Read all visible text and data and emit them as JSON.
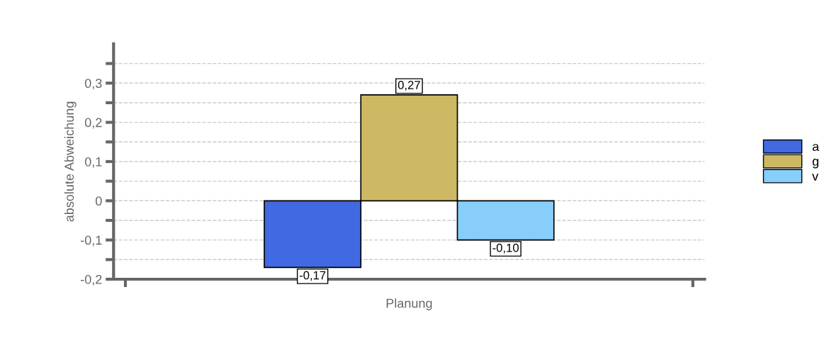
{
  "chart_data": {
    "type": "bar",
    "ylabel": "absolute Abweichung",
    "xlabel": "Planung",
    "categories": [
      null
    ],
    "series": [
      {
        "name": "a",
        "color": "#4169e1",
        "values": [
          -0.17
        ],
        "value_labels": [
          "-0,17"
        ]
      },
      {
        "name": "g",
        "color": "#cdb964",
        "values": [
          0.27
        ],
        "value_labels": [
          "0,27"
        ]
      },
      {
        "name": "v",
        "color": "#87cefa",
        "values": [
          -0.1
        ],
        "value_labels": [
          "-0,10"
        ]
      }
    ],
    "ylim": [
      -0.2,
      0.4
    ],
    "yticks": [
      {
        "value": -0.2,
        "label": "-0,2"
      },
      {
        "value": -0.15,
        "label": null
      },
      {
        "value": -0.1,
        "label": "-0,1"
      },
      {
        "value": -0.05,
        "label": null
      },
      0,
      {
        "value": 0.05,
        "label": null
      },
      {
        "value": 0.1,
        "label": "0,1"
      },
      {
        "value": 0.15,
        "label": null
      },
      {
        "value": 0.2,
        "label": "0,2"
      },
      {
        "value": 0.25,
        "label": null
      },
      {
        "value": 0.3,
        "label": "0,3"
      },
      {
        "value": 0.35,
        "label": null
      }
    ],
    "grid": "y",
    "legend": "right"
  }
}
